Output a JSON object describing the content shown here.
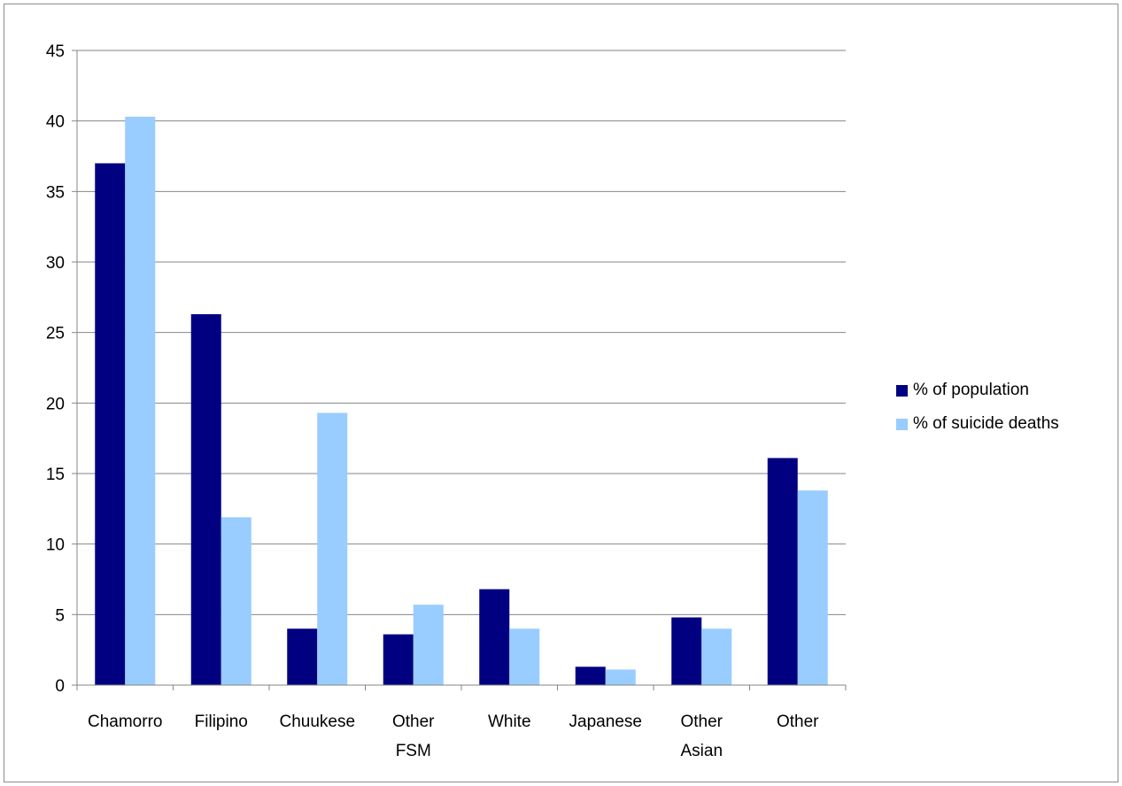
{
  "chart_data": {
    "type": "bar",
    "categories": [
      [
        "Chamorro"
      ],
      [
        "Filipino"
      ],
      [
        "Chuukese"
      ],
      [
        "Other",
        "FSM"
      ],
      [
        "White"
      ],
      [
        "Japanese"
      ],
      [
        "Other",
        "Asian"
      ],
      [
        "Other"
      ]
    ],
    "series": [
      {
        "name": "% of population",
        "color": "#000080",
        "values": [
          37.0,
          26.3,
          4.0,
          3.6,
          6.8,
          1.3,
          4.8,
          16.1
        ]
      },
      {
        "name": "% of suicide deaths",
        "color": "#99ccff",
        "values": [
          40.3,
          11.9,
          19.3,
          5.7,
          4.0,
          1.1,
          4.0,
          13.8
        ]
      }
    ],
    "ylim": [
      0,
      45
    ],
    "yticks": [
      0,
      5,
      10,
      15,
      20,
      25,
      30,
      35,
      40,
      45
    ],
    "grid": true,
    "legend_position": "right",
    "title": "",
    "xlabel": "",
    "ylabel": ""
  }
}
